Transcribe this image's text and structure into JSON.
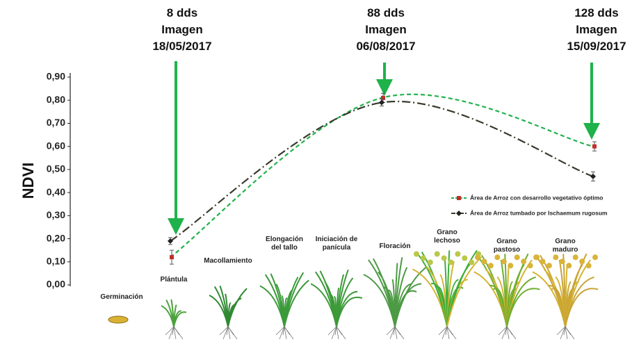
{
  "chart_data": {
    "type": "line",
    "y_label": "NDVI",
    "ylim": [
      0,
      0.9
    ],
    "yticks": [
      {
        "value": 0,
        "label": "0,00"
      },
      {
        "value": 0.1,
        "label": "0,10"
      },
      {
        "value": 0.2,
        "label": "0,20"
      },
      {
        "value": 0.3,
        "label": "0,30"
      },
      {
        "value": 0.4,
        "label": "0,40"
      },
      {
        "value": 0.5,
        "label": "0,50"
      },
      {
        "value": 0.6,
        "label": "0,60"
      },
      {
        "value": 0.7,
        "label": "0,70"
      },
      {
        "value": 0.8,
        "label": "0,80"
      },
      {
        "value": 0.9,
        "label": "0,90"
      }
    ],
    "annotations": [
      [
        "8 dds",
        "Imagen",
        "18/05/2017"
      ],
      [
        "88 dds",
        "Imagen",
        "06/08/2017"
      ],
      [
        "128 dds",
        "Imagen",
        "15/09/2017"
      ]
    ],
    "series": [
      {
        "name": "Área de Arroz con desarrollo vegetativo óptimo",
        "color": "#22b24c",
        "marker_color": "#c0302b",
        "values": [
          0.12,
          0.81,
          0.6
        ],
        "errors": [
          0.03,
          0.02,
          0.02
        ]
      },
      {
        "name": "Área de Arroz tumbado por Ischaemum rugosum",
        "color": "#3a3a2c",
        "marker_color": "#222222",
        "values": [
          0.19,
          0.79,
          0.47
        ],
        "errors": [
          0.015,
          0.015,
          0.02
        ]
      }
    ],
    "stages": [
      "Germinación",
      "Plántula",
      "Macollamiento",
      [
        "Elongación",
        "del tallo"
      ],
      [
        "Iniciación de",
        "panícula"
      ],
      "Floración",
      [
        "Grano",
        "lechoso"
      ],
      [
        "Grano",
        "pastoso"
      ],
      [
        "Grano",
        "maduro"
      ]
    ]
  }
}
